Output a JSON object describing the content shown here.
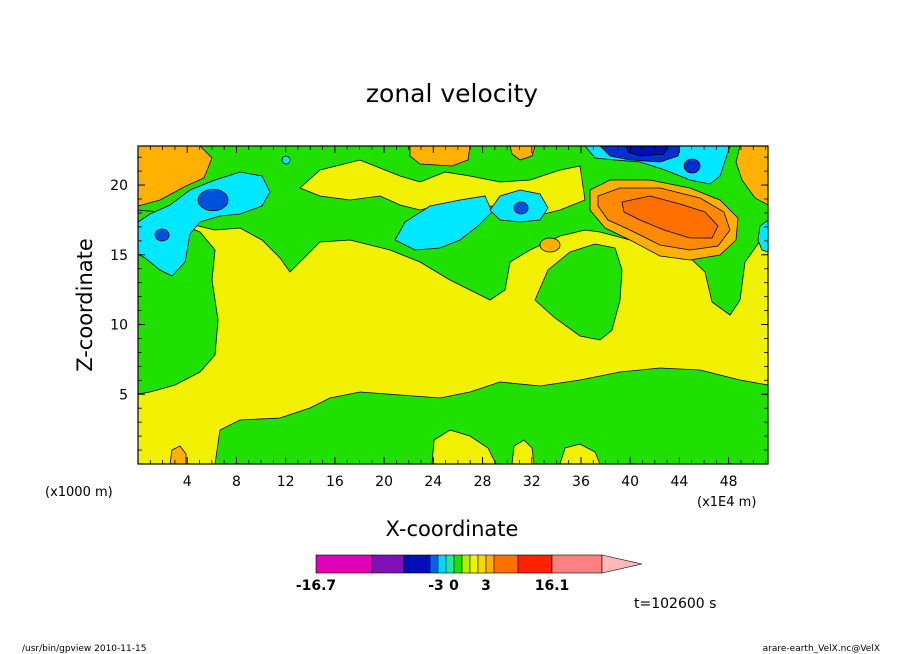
{
  "chart_data": {
    "type": "heatmap",
    "title": "zonal velocity",
    "xlabel": "X-coordinate",
    "ylabel": "Z-coordinate",
    "x_unit_note": "(x1000 m)",
    "x_scale_note": "(x1E4 m)",
    "xlim": [
      0,
      51.2
    ],
    "ylim": [
      0,
      22.8
    ],
    "x_ticks": [
      "4",
      "8",
      "12",
      "16",
      "20",
      "24",
      "28",
      "32",
      "36",
      "40",
      "44",
      "48"
    ],
    "y_ticks": [
      "5",
      "10",
      "15",
      "20"
    ],
    "colorbar": {
      "labels": [
        "-16.7",
        "-3",
        "0",
        "3",
        "16.1"
      ],
      "colors": [
        "#e000b8",
        "#8010b8",
        "#0010b8",
        "#0060f0",
        "#00d8ff",
        "#20e8a0",
        "#20e000",
        "#b0f000",
        "#f0f000",
        "#f8d800",
        "#ffb000",
        "#ff7000",
        "#ff2000",
        "#ff8080"
      ],
      "extend_color": "#ffb8b8"
    },
    "time_label": "t=102600 s",
    "footer_left": "/usr/bin/gpview  2010-11-15",
    "footer_right": "arare-earth_VelX.nc@VelX"
  }
}
